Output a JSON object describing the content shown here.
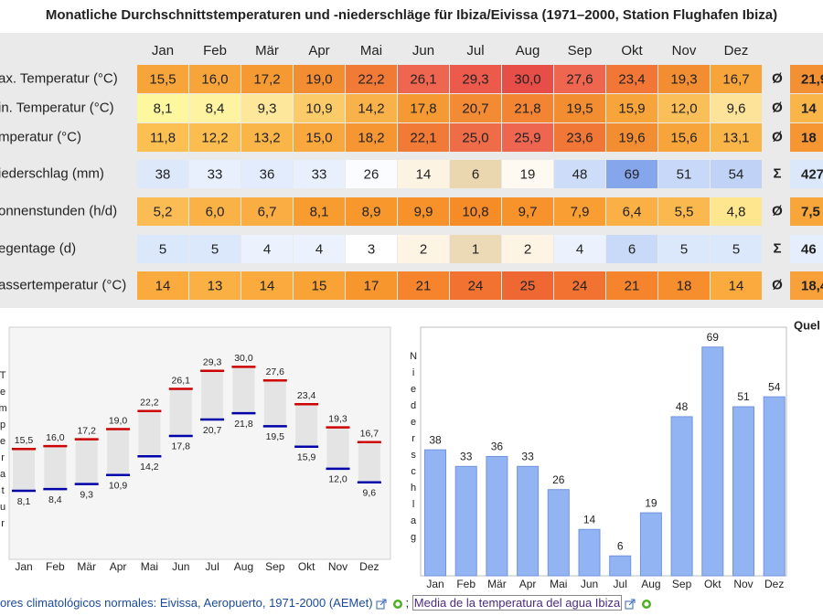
{
  "title": "Monatliche Durchschnittstemperaturen und -niederschläge für Ibiza/Eivissa (1971–2000, Station Flughafen Ibiza)",
  "table": {
    "header": [
      "Jan",
      "Feb",
      "Mär",
      "Apr",
      "Mai",
      "Jun",
      "Jul",
      "Aug",
      "Sep",
      "Okt",
      "Nov",
      "Dez"
    ],
    "rows": [
      {
        "label": "ax. Temperatur (°C)",
        "cells": [
          "15,5",
          "16,0",
          "17,2",
          "19,0",
          "22,2",
          "26,1",
          "29,3",
          "30,0",
          "27,6",
          "23,4",
          "19,3",
          "16,7"
        ],
        "colors": [
          "#f7a43a",
          "#f7a43a",
          "#f59a32",
          "#f38d32",
          "#f17a36",
          "#ee6650",
          "#ec5a4c",
          "#e84e48",
          "#ee6650",
          "#f27736",
          "#f38d32",
          "#f7a43a"
        ],
        "symbol": "Ø",
        "summary": "21,9",
        "summary_color": "#f29033"
      },
      {
        "label": "in. Temperatur (°C)",
        "cells": [
          "8,1",
          "8,4",
          "9,3",
          "10,9",
          "14,2",
          "17,8",
          "20,7",
          "21,8",
          "19,5",
          "15,9",
          "12,0",
          "9,6"
        ],
        "colors": [
          "#fdf7a0",
          "#fdf3a0",
          "#fde79a",
          "#fbcb6a",
          "#f9b24a",
          "#f59a32",
          "#f38a34",
          "#f28434",
          "#f38d32",
          "#f7a43a",
          "#fbbf5a",
          "#fde39a"
        ],
        "symbol": "Ø",
        "summary": "14",
        "summary_color": "#fab548"
      },
      {
        "label": "mperatur (°C)",
        "cells": [
          "11,8",
          "12,2",
          "13,2",
          "15,0",
          "18,2",
          "22,1",
          "25,0",
          "25,9",
          "23,6",
          "19,6",
          "15,6",
          "13,1"
        ],
        "colors": [
          "#fbbf52",
          "#fbbc50",
          "#fab548",
          "#f8a83c",
          "#f59632",
          "#f17a36",
          "#ef6c48",
          "#ee6650",
          "#f17736",
          "#f38d32",
          "#f7a43a",
          "#fab548"
        ],
        "symbol": "Ø",
        "summary": "18",
        "summary_color": "#f59632"
      },
      {
        "label": "iederschlag (mm)",
        "cells": [
          "38",
          "33",
          "36",
          "33",
          "26",
          "14",
          "6",
          "19",
          "48",
          "69",
          "51",
          "54"
        ],
        "colors": [
          "#dde8fb",
          "#e8f0fd",
          "#e2ecfc",
          "#e8f0fd",
          "#fafcff",
          "#fdf3e3",
          "#ead7b0",
          "#fefaf2",
          "#cddcf8",
          "#86a6ec",
          "#c8d8f8",
          "#c0d3f6"
        ],
        "symbol": "Σ",
        "summary": "427",
        "summary_color": "#dbe7fb"
      },
      {
        "label": "onnenstunden (h/d)",
        "cells": [
          "5,2",
          "6,0",
          "6,7",
          "8,1",
          "8,9",
          "9,9",
          "10,8",
          "9,7",
          "7,9",
          "6,4",
          "5,5",
          "4,8"
        ],
        "colors": [
          "#fbbc54",
          "#fab246",
          "#faad42",
          "#f89c30",
          "#f8982c",
          "#f7922a",
          "#f68c28",
          "#f7932a",
          "#f99e32",
          "#fab044",
          "#fbb84e",
          "#fde68e"
        ],
        "symbol": "Ø",
        "summary": "7,5",
        "summary_color": "#f8a63a"
      },
      {
        "label": "egentage (d)",
        "cells": [
          "5",
          "5",
          "4",
          "4",
          "3",
          "2",
          "1",
          "2",
          "4",
          "6",
          "5",
          "5"
        ],
        "colors": [
          "#dbe7fb",
          "#dbe7fb",
          "#ebf2fd",
          "#ebf2fd",
          "#ffffff",
          "#fdf4e4",
          "#ecdab6",
          "#fdf4e4",
          "#ebf2fd",
          "#c8daf8",
          "#dbe7fb",
          "#dbe7fb"
        ],
        "symbol": "Σ",
        "summary": "46",
        "summary_color": "#e5eefc"
      },
      {
        "label": "assertemperatur (°C)",
        "cells": [
          "14",
          "13",
          "14",
          "15",
          "17",
          "21",
          "24",
          "25",
          "24",
          "21",
          "18",
          "14"
        ],
        "colors": [
          "#fbab3e",
          "#fbb044",
          "#fbab3e",
          "#f9a236",
          "#f8962e",
          "#f6842c",
          "#f27232",
          "#ef6834",
          "#f27232",
          "#f6842c",
          "#f78e2e",
          "#fbab3e"
        ],
        "symbol": "Ø",
        "summary": "18,4",
        "summary_color": "#f8a03a"
      }
    ]
  },
  "chart_data": [
    {
      "type": "range",
      "y_label": "Temperatur",
      "categories": [
        "Jan",
        "Feb",
        "Mär",
        "Apr",
        "Mai",
        "Jun",
        "Jul",
        "Aug",
        "Sep",
        "Okt",
        "Nov",
        "Dez"
      ],
      "max_values": [
        15.5,
        16.0,
        17.2,
        19.0,
        22.2,
        26.1,
        29.3,
        30.0,
        27.6,
        23.4,
        19.3,
        16.7
      ],
      "max_value_labels": [
        "15,5",
        "16,0",
        "17,2",
        "19,0",
        "22,2",
        "26,1",
        "29,3",
        "30,0",
        "27,6",
        "23,4",
        "19,3",
        "16,7"
      ],
      "min_values": [
        8.1,
        8.4,
        9.3,
        10.9,
        14.2,
        17.8,
        20.7,
        21.8,
        19.5,
        15.9,
        12.0,
        9.6
      ],
      "min_value_labels": [
        "8,1",
        "8,4",
        "9,3",
        "10,9",
        "14,2",
        "17,8",
        "20,7",
        "21,8",
        "19,5",
        "15,9",
        "12,0",
        "9,6"
      ],
      "max_color": "#cc0000",
      "min_color": "#0000aa",
      "box_color": "#e4e4e4",
      "ylim": [
        -4,
        37
      ]
    },
    {
      "type": "bar",
      "y_label": "Niederschlag",
      "categories": [
        "Jan",
        "Feb",
        "Mär",
        "Apr",
        "Mai",
        "Jun",
        "Jul",
        "Aug",
        "Sep",
        "Okt",
        "Nov",
        "Dez"
      ],
      "values": [
        38,
        33,
        36,
        33,
        26,
        14,
        6,
        19,
        48,
        69,
        51,
        54
      ],
      "color": "#93b4f2",
      "ylim": [
        0,
        75
      ]
    }
  ],
  "sources_heading": "Quel",
  "footer": {
    "source1": "ores climatológicos normales: Eivissa, Aeropuerto, 1971-2000 (AEMet)",
    "separator": ";",
    "source2": "Media de la temperatura del agua Ibiza"
  }
}
